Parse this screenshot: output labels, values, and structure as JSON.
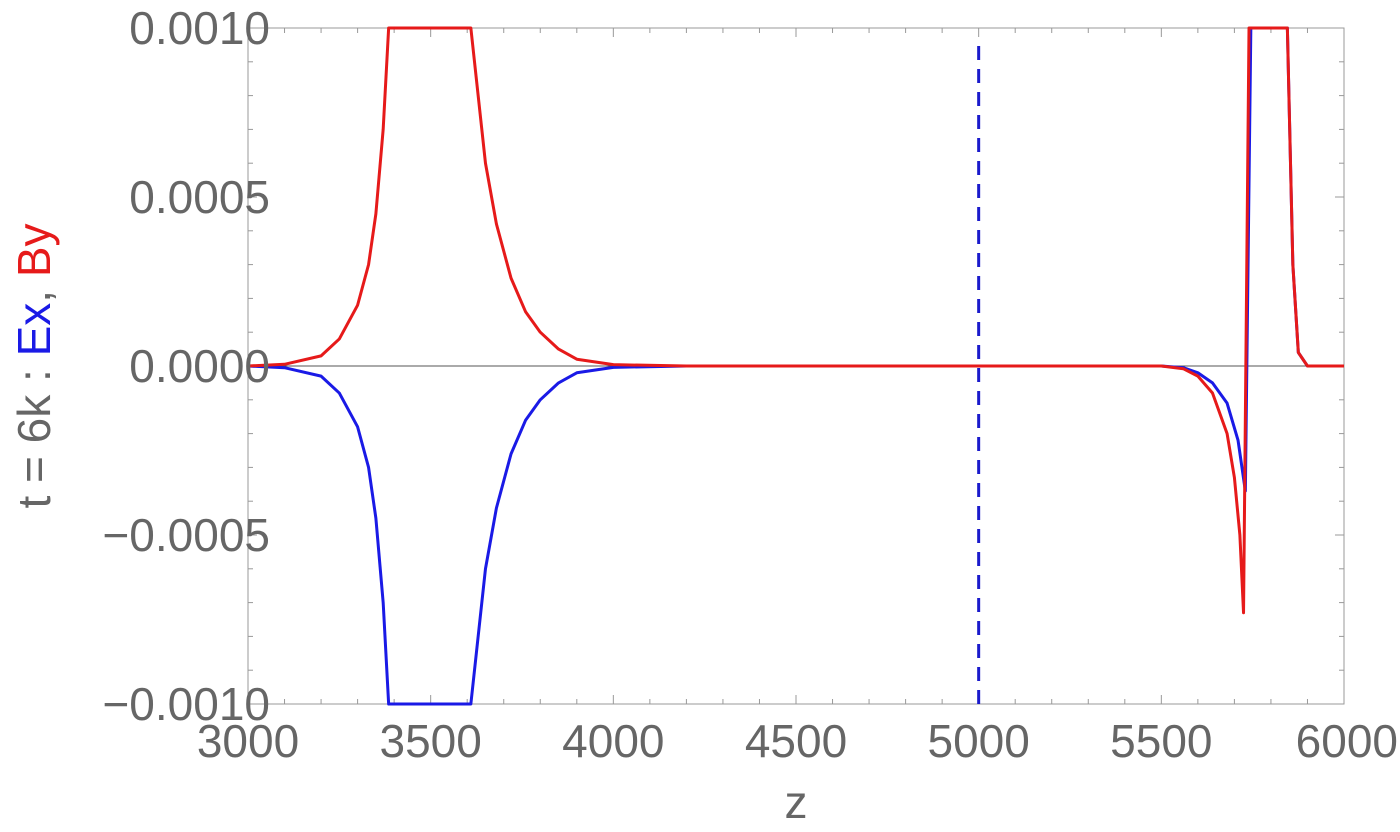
{
  "chart_data": {
    "type": "line",
    "xlabel": "z",
    "ylabel": {
      "prefix": "t = 6k : ",
      "ex_label": "Ex",
      "separator": ", ",
      "by_label": "By"
    },
    "xlim": [
      3000,
      6000
    ],
    "ylim": [
      -0.001,
      0.001
    ],
    "x_ticks": [
      "3000",
      "3500",
      "4000",
      "4500",
      "5000",
      "5500",
      "6000"
    ],
    "y_ticks": [
      "−0.0010",
      "−0.0005",
      "0.0000",
      "0.0005",
      "0.0010"
    ],
    "grid": false,
    "vertical_marker": {
      "x": 5000,
      "style": "dashed",
      "color": "#1a1acc"
    },
    "series": [
      {
        "name": "Ex",
        "color": "#1a1ae6",
        "points": [
          [
            3000,
            0
          ],
          [
            3100,
            -5e-06
          ],
          [
            3200,
            -3e-05
          ],
          [
            3250,
            -8e-05
          ],
          [
            3300,
            -0.00018
          ],
          [
            3330,
            -0.0003
          ],
          [
            3350,
            -0.00045
          ],
          [
            3370,
            -0.0007
          ],
          [
            3385,
            -0.001
          ],
          [
            3610,
            -0.001
          ],
          [
            3625,
            -0.00085
          ],
          [
            3650,
            -0.0006
          ],
          [
            3680,
            -0.00042
          ],
          [
            3720,
            -0.00026
          ],
          [
            3760,
            -0.00016
          ],
          [
            3800,
            -0.0001
          ],
          [
            3850,
            -5e-05
          ],
          [
            3900,
            -2e-05
          ],
          [
            4000,
            -4e-06
          ],
          [
            4200,
            0
          ],
          [
            5500,
            0
          ],
          [
            5560,
            -5e-06
          ],
          [
            5600,
            -2e-05
          ],
          [
            5640,
            -5e-05
          ],
          [
            5680,
            -0.00011
          ],
          [
            5710,
            -0.00022
          ],
          [
            5730,
            -0.00037
          ],
          [
            5745,
            0.001
          ],
          [
            5845,
            0.001
          ],
          [
            5860,
            0.0003
          ],
          [
            5875,
            4e-05
          ],
          [
            5900,
            0
          ],
          [
            6000,
            0
          ]
        ]
      },
      {
        "name": "By",
        "color": "#e61a1a",
        "points": [
          [
            3000,
            0
          ],
          [
            3100,
            5e-06
          ],
          [
            3200,
            3e-05
          ],
          [
            3250,
            8e-05
          ],
          [
            3300,
            0.00018
          ],
          [
            3330,
            0.0003
          ],
          [
            3350,
            0.00045
          ],
          [
            3370,
            0.0007
          ],
          [
            3385,
            0.001
          ],
          [
            3610,
            0.001
          ],
          [
            3625,
            0.00085
          ],
          [
            3650,
            0.0006
          ],
          [
            3680,
            0.00042
          ],
          [
            3720,
            0.00026
          ],
          [
            3760,
            0.00016
          ],
          [
            3800,
            0.0001
          ],
          [
            3850,
            5e-05
          ],
          [
            3900,
            2e-05
          ],
          [
            4000,
            4e-06
          ],
          [
            4200,
            0
          ],
          [
            5500,
            0
          ],
          [
            5560,
            -8e-06
          ],
          [
            5600,
            -3e-05
          ],
          [
            5640,
            -8e-05
          ],
          [
            5680,
            -0.0002
          ],
          [
            5700,
            -0.00033
          ],
          [
            5715,
            -0.0005
          ],
          [
            5725,
            -0.00073
          ],
          [
            5740,
            0.001
          ],
          [
            5845,
            0.001
          ],
          [
            5860,
            0.0003
          ],
          [
            5875,
            4e-05
          ],
          [
            5900,
            0
          ],
          [
            6000,
            0
          ]
        ]
      }
    ]
  },
  "colors": {
    "text": "#666666",
    "ex": "#1a1ae6",
    "by": "#e61a1a",
    "frame": "#999999",
    "zero_line": "#555555"
  }
}
